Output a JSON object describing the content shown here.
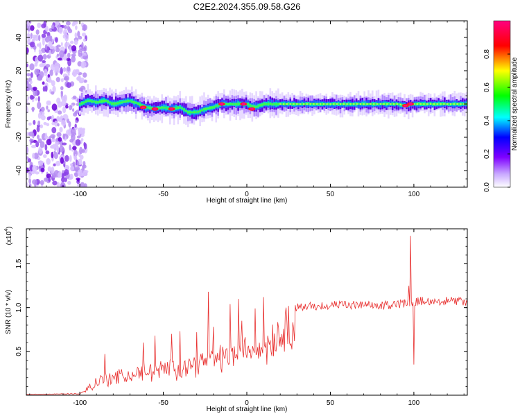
{
  "title": "C2E2.2024.355.09.58.G26",
  "chart_data": [
    {
      "type": "heatmap",
      "xlabel": "Height of straight line (km)",
      "ylabel": "Frequency (Hz)",
      "xlim": [
        -132,
        132
      ],
      "ylim": [
        -50,
        50
      ],
      "x_ticks": [
        "-100",
        "-50",
        "0",
        "50",
        "100"
      ],
      "y_ticks": [
        "-40",
        "-20",
        "0",
        "20",
        "40"
      ],
      "colorbar": {
        "label": "Normalized spectral amplitude",
        "ticks": [
          "0.0",
          "0.2",
          "0.4",
          "0.6",
          "0.8"
        ],
        "range": [
          0,
          1
        ],
        "colors": [
          "#ffffff",
          "#b48cff",
          "#7f00ff",
          "#0000ff",
          "#00ffff",
          "#00ff00",
          "#ffff00",
          "#ff0000",
          "#ff0080"
        ]
      },
      "noise_region_x": [
        -132,
        -96
      ],
      "band_center_hz": [
        [
          -100,
          0
        ],
        [
          -95,
          2
        ],
        [
          -90,
          1
        ],
        [
          -85,
          2
        ],
        [
          -80,
          0
        ],
        [
          -75,
          1
        ],
        [
          -70,
          2
        ],
        [
          -65,
          0
        ],
        [
          -60,
          -2
        ],
        [
          -55,
          -3
        ],
        [
          -50,
          -2
        ],
        [
          -45,
          -3
        ],
        [
          -40,
          -2
        ],
        [
          -35,
          -5
        ],
        [
          -30,
          -5
        ],
        [
          -25,
          -3
        ],
        [
          -20,
          -2
        ],
        [
          -15,
          0
        ],
        [
          -10,
          0
        ],
        [
          -5,
          0
        ],
        [
          0,
          0
        ],
        [
          5,
          -2
        ],
        [
          10,
          0
        ],
        [
          20,
          0
        ],
        [
          50,
          0
        ],
        [
          90,
          0
        ],
        [
          96,
          -1
        ],
        [
          100,
          0
        ],
        [
          132,
          0
        ]
      ],
      "strong_spots": [
        [
          -62,
          -2
        ],
        [
          -55,
          -3
        ],
        [
          -45,
          -3
        ],
        [
          -15,
          0
        ],
        [
          -2,
          0
        ],
        [
          3,
          -3
        ],
        [
          95,
          -1
        ],
        [
          98,
          0
        ]
      ]
    },
    {
      "type": "line",
      "xlabel": "Height of straight line (km)",
      "ylabel": "SNR (10 * v/v)",
      "y_multiplier": "(x10",
      "y_multiplier_exp": "4",
      "xlim": [
        -132,
        132
      ],
      "ylim": [
        0,
        1.9
      ],
      "x_ticks": [
        "-100",
        "-50",
        "0",
        "50",
        "100"
      ],
      "y_ticks": [
        "0.5",
        "1.0",
        "1.5"
      ],
      "color": "#e8302f",
      "envelope": [
        [
          -132,
          0.01
        ],
        [
          -100,
          0.02
        ],
        [
          -95,
          0.08
        ],
        [
          -90,
          0.15
        ],
        [
          -85,
          0.2
        ],
        [
          -80,
          0.22
        ],
        [
          -70,
          0.25
        ],
        [
          -60,
          0.3
        ],
        [
          -50,
          0.32
        ],
        [
          -40,
          0.36
        ],
        [
          -30,
          0.42
        ],
        [
          -20,
          0.48
        ],
        [
          -10,
          0.52
        ],
        [
          0,
          0.62
        ],
        [
          10,
          0.72
        ],
        [
          20,
          0.85
        ],
        [
          25,
          0.95
        ],
        [
          30,
          1.0
        ],
        [
          40,
          1.02
        ],
        [
          60,
          1.03
        ],
        [
          80,
          1.02
        ],
        [
          95,
          1.05
        ],
        [
          100,
          1.07
        ],
        [
          110,
          1.08
        ],
        [
          132,
          1.07
        ]
      ],
      "spikes": [
        [
          -85,
          0.47
        ],
        [
          -62,
          0.6
        ],
        [
          -55,
          0.68
        ],
        [
          -45,
          0.7
        ],
        [
          -40,
          0.73
        ],
        [
          -30,
          0.72
        ],
        [
          -23,
          1.18
        ],
        [
          -20,
          0.78
        ],
        [
          -10,
          1.04
        ],
        [
          -5,
          1.1
        ],
        [
          -3,
          0.85
        ],
        [
          5,
          0.99
        ],
        [
          10,
          1.12
        ],
        [
          12,
          0.35
        ],
        [
          25,
          1.02
        ],
        [
          97,
          1.25
        ],
        [
          98,
          1.82
        ],
        [
          100,
          0.35
        ]
      ]
    }
  ]
}
